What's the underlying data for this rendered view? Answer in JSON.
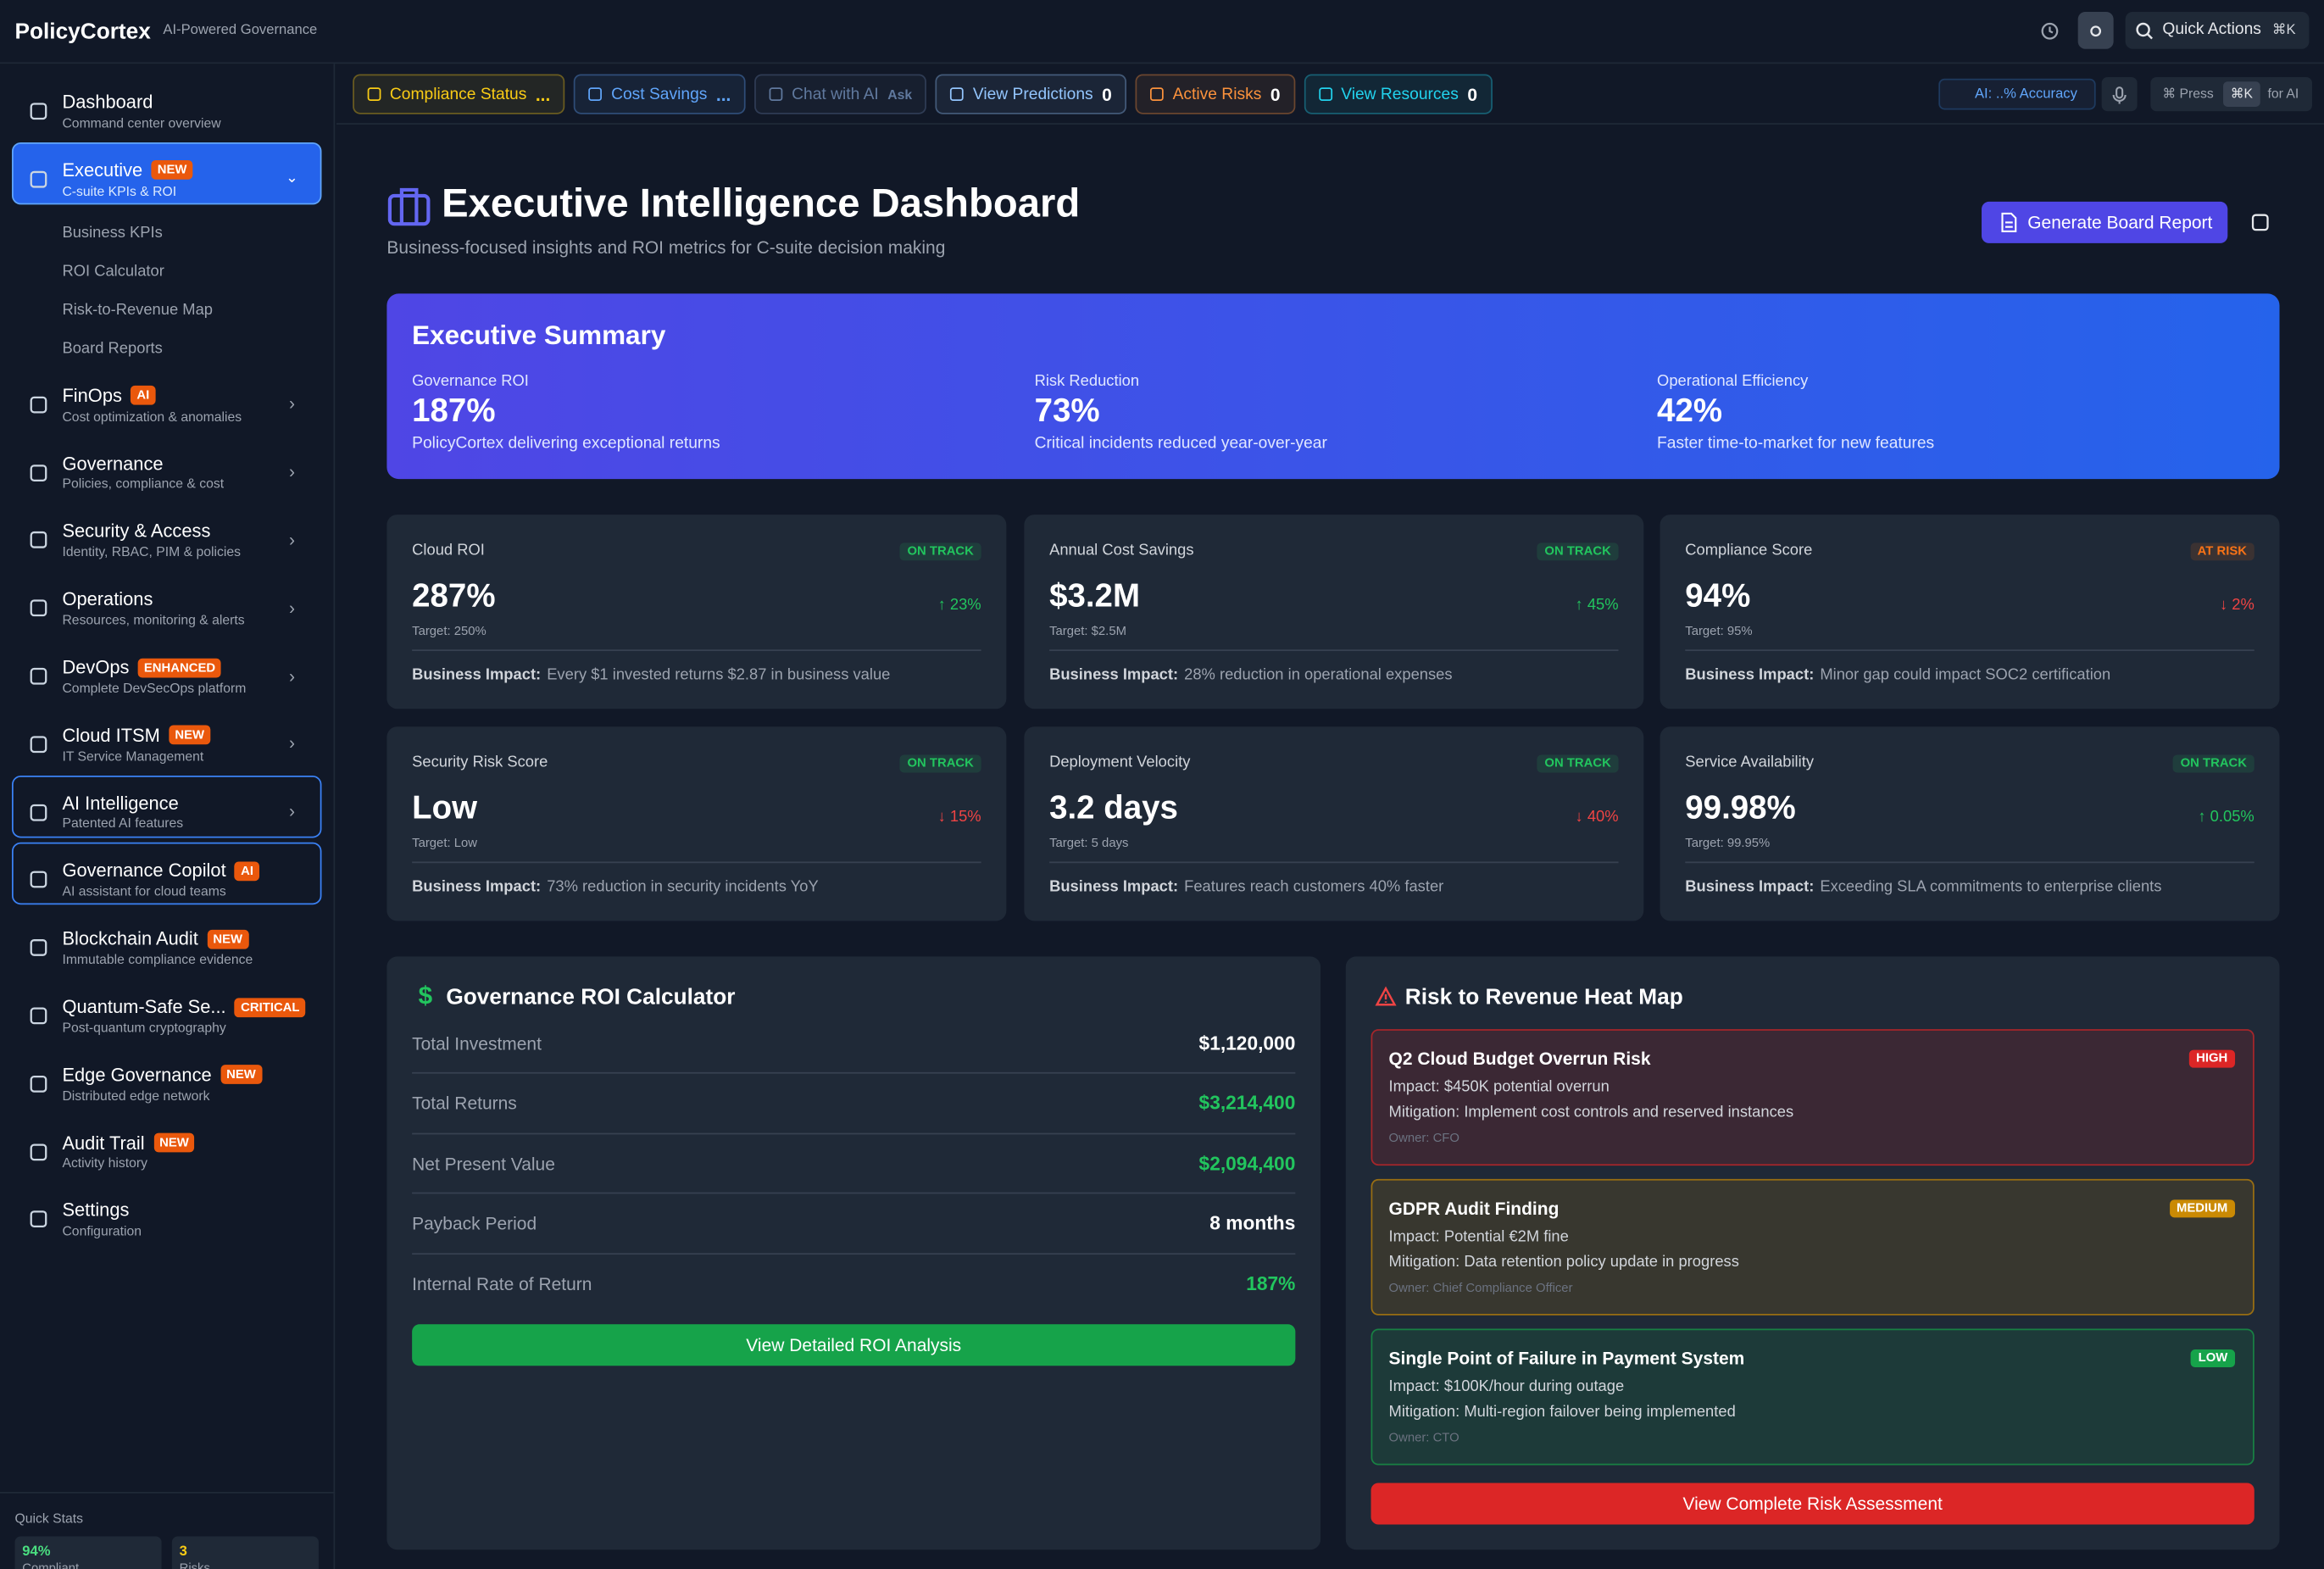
{
  "header": {
    "brand": "PolicyCortex",
    "tagline": "AI-Powered Governance",
    "quick_actions": "Quick Actions",
    "shortcut": "⌘K"
  },
  "sidebar": {
    "items": [
      {
        "label": "Dashboard",
        "sub": "Command center overview"
      },
      {
        "label": "Executive",
        "badge": "NEW",
        "sub": "C-suite KPIs & ROI",
        "children": [
          "Business KPIs",
          "ROI Calculator",
          "Risk-to-Revenue Map",
          "Board Reports"
        ]
      },
      {
        "label": "FinOps",
        "badge": "AI",
        "sub": "Cost optimization & anomalies"
      },
      {
        "label": "Governance",
        "sub": "Policies, compliance & cost"
      },
      {
        "label": "Security & Access",
        "sub": "Identity, RBAC, PIM & policies"
      },
      {
        "label": "Operations",
        "sub": "Resources, monitoring & alerts"
      },
      {
        "label": "DevOps",
        "badge": "ENHANCED",
        "sub": "Complete DevSecOps platform"
      },
      {
        "label": "Cloud ITSM",
        "badge": "NEW",
        "sub": "IT Service Management"
      },
      {
        "label": "AI Intelligence",
        "sub": "Patented AI features"
      },
      {
        "label": "Governance Copilot",
        "badge": "AI",
        "sub": "AI assistant for cloud teams"
      },
      {
        "label": "Blockchain Audit",
        "badge": "NEW",
        "sub": "Immutable compliance evidence"
      },
      {
        "label": "Quantum-Safe Se...",
        "badge": "CRITICAL",
        "sub": "Post-quantum cryptography"
      },
      {
        "label": "Edge Governance",
        "badge": "NEW",
        "sub": "Distributed edge network"
      },
      {
        "label": "Audit Trail",
        "badge": "NEW",
        "sub": "Activity history"
      },
      {
        "label": "Settings",
        "sub": "Configuration"
      }
    ],
    "quick_stats": {
      "title": "Quick Stats",
      "stats": [
        {
          "value": "94%",
          "label": "Compliant",
          "color": "#4ade80"
        },
        {
          "value": "3",
          "label": "Risks",
          "color": "#facc15"
        }
      ]
    }
  },
  "toolbar": {
    "chips": [
      {
        "label": "Compliance Status",
        "tag": "...",
        "color": "#facc15"
      },
      {
        "label": "Cost Savings",
        "tag": "...",
        "color": "#60a5fa"
      },
      {
        "label": "Chat with AI",
        "tag": "Ask",
        "color": "#60799e"
      },
      {
        "label": "View Predictions",
        "tag": "0",
        "color": "#93c5fd"
      },
      {
        "label": "Active Risks",
        "tag": "0",
        "color": "#fb923c"
      },
      {
        "label": "View Resources",
        "tag": "0",
        "color": "#22d3ee"
      }
    ],
    "accuracy": "AI: ..% Accuracy",
    "press": "⌘ Press",
    "press_key": "⌘K",
    "press_suffix": "for AI"
  },
  "page": {
    "title": "Executive Intelligence Dashboard",
    "subtitle": "Business-focused insights and ROI metrics for C-suite decision making",
    "report_button": "Generate Board Report"
  },
  "summary": {
    "title": "Executive Summary",
    "items": [
      {
        "label": "Governance ROI",
        "value": "187%",
        "note": "PolicyCortex delivering exceptional returns"
      },
      {
        "label": "Risk Reduction",
        "value": "73%",
        "note": "Critical incidents reduced year-over-year"
      },
      {
        "label": "Operational Efficiency",
        "value": "42%",
        "note": "Faster time-to-market for new features"
      }
    ]
  },
  "kpis": {
    "impact_label": "Business Impact:",
    "cards": [
      {
        "label": "Cloud ROI",
        "status": "ON TRACK",
        "status_color": "#22c55e",
        "value": "287%",
        "delta": "↑ 23%",
        "delta_color": "#22c55e",
        "target": "Target: 250%",
        "impact": "Every $1 invested returns $2.87 in business value"
      },
      {
        "label": "Annual Cost Savings",
        "status": "ON TRACK",
        "status_color": "#22c55e",
        "value": "$3.2M",
        "delta": "↑ 45%",
        "delta_color": "#22c55e",
        "target": "Target: $2.5M",
        "impact": "28% reduction in operational expenses"
      },
      {
        "label": "Compliance Score",
        "status": "AT RISK",
        "status_color": "#f97316",
        "value": "94%",
        "delta": "↓ 2%",
        "delta_color": "#ef4444",
        "target": "Target: 95%",
        "impact": "Minor gap could impact SOC2 certification"
      },
      {
        "label": "Security Risk Score",
        "status": "ON TRACK",
        "status_color": "#22c55e",
        "value": "Low",
        "delta": "↓ 15%",
        "delta_color": "#ef4444",
        "target": "Target: Low",
        "impact": "73% reduction in security incidents YoY"
      },
      {
        "label": "Deployment Velocity",
        "status": "ON TRACK",
        "status_color": "#22c55e",
        "value": "3.2 days",
        "delta": "↓ 40%",
        "delta_color": "#ef4444",
        "target": "Target: 5 days",
        "impact": "Features reach customers 40% faster"
      },
      {
        "label": "Service Availability",
        "status": "ON TRACK",
        "status_color": "#22c55e",
        "value": "99.98%",
        "delta": "↑ 0.05%",
        "delta_color": "#22c55e",
        "target": "Target: 99.95%",
        "impact": "Exceeding SLA commitments to enterprise clients"
      }
    ]
  },
  "roi": {
    "title": "Governance ROI Calculator",
    "rows": [
      {
        "label": "Total Investment",
        "value": "$1,120,000",
        "color": "#ffffff"
      },
      {
        "label": "Total Returns",
        "value": "$3,214,400",
        "color": "#22c55e"
      },
      {
        "label": "Net Present Value",
        "value": "$2,094,400",
        "color": "#22c55e"
      },
      {
        "label": "Payback Period",
        "value": "8 months",
        "color": "#ffffff"
      },
      {
        "label": "Internal Rate of Return",
        "value": "187%",
        "color": "#22c55e"
      }
    ],
    "button": "View Detailed ROI Analysis"
  },
  "risk": {
    "title": "Risk to Revenue Heat Map",
    "items": [
      {
        "title": "Q2 Cloud Budget Overrun Risk",
        "level": "HIGH",
        "color": "#dc2626",
        "impact": "Impact: $450K potential overrun",
        "mitigation": "Mitigation: Implement cost controls and reserved instances",
        "owner": "Owner: CFO"
      },
      {
        "title": "GDPR Audit Finding",
        "level": "MEDIUM",
        "color": "#ca8a04",
        "impact": "Impact: Potential €2M fine",
        "mitigation": "Mitigation: Data retention policy update in progress",
        "owner": "Owner: Chief Compliance Officer"
      },
      {
        "title": "Single Point of Failure in Payment System",
        "level": "LOW",
        "color": "#16a34a",
        "impact": "Impact: $100K/hour during outage",
        "mitigation": "Mitigation: Multi-region failover being implemented",
        "owner": "Owner: CTO"
      }
    ],
    "button": "View Complete Risk Assessment"
  }
}
